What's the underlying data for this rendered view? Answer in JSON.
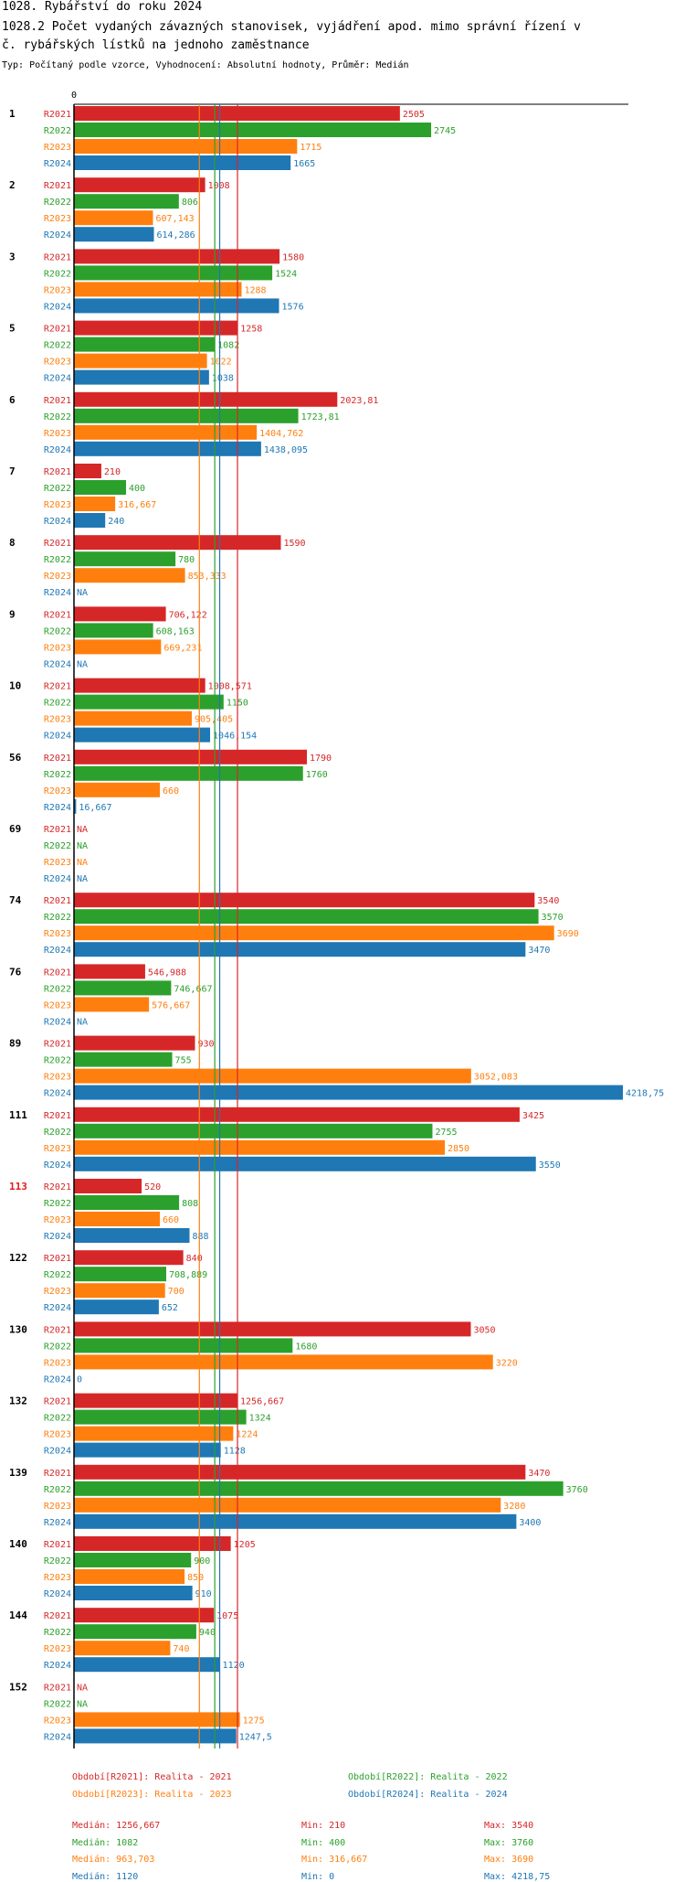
{
  "title": "1028. Rybářství do roku 2024",
  "subtitle_line1": "1028.2 Počet vydaných závazných stanovisek, vyjádření apod. mimo správní řízení v",
  "subtitle_line2": "č. rybářských lístků na jednoho zaměstnance",
  "meta": "Typ: Počítaný podle vzorce, Vyhodnocení: Absolutní hodnoty, Průměr: Medián",
  "axis_zero_label": "0",
  "colors": {
    "R2021": "#d62728",
    "R2022": "#2ca02c",
    "R2023": "#ff7f0e",
    "R2024": "#1f77b4",
    "highlight": "#e31a1c"
  },
  "chart_data": {
    "type": "bar",
    "orientation": "horizontal",
    "xlim": [
      0,
      4218.75
    ],
    "series_names": [
      "R2021",
      "R2022",
      "R2023",
      "R2024"
    ],
    "highlight_category": "113",
    "categories": [
      {
        "id": "1",
        "values": [
          2505,
          2745,
          1715,
          1665
        ],
        "labels": [
          "2505",
          "2745",
          "1715",
          "1665"
        ]
      },
      {
        "id": "2",
        "values": [
          1008,
          806,
          607.143,
          614.286
        ],
        "labels": [
          "1008",
          "806",
          "607,143",
          "614,286"
        ]
      },
      {
        "id": "3",
        "values": [
          1580,
          1524,
          1288,
          1576
        ],
        "labels": [
          "1580",
          "1524",
          "1288",
          "1576"
        ]
      },
      {
        "id": "5",
        "values": [
          1258,
          1082,
          1022,
          1038
        ],
        "labels": [
          "1258",
          "1082",
          "1022",
          "1038"
        ]
      },
      {
        "id": "6",
        "values": [
          2023.81,
          1723.81,
          1404.762,
          1438.095
        ],
        "labels": [
          "2023,81",
          "1723,81",
          "1404,762",
          "1438,095"
        ]
      },
      {
        "id": "7",
        "values": [
          210,
          400,
          316.667,
          240
        ],
        "labels": [
          "210",
          "400",
          "316,667",
          "240"
        ]
      },
      {
        "id": "8",
        "values": [
          1590,
          780,
          853.333,
          null
        ],
        "labels": [
          "1590",
          "780",
          "853,333",
          "NA"
        ]
      },
      {
        "id": "9",
        "values": [
          706.122,
          608.163,
          669.231,
          null
        ],
        "labels": [
          "706,122",
          "608,163",
          "669,231",
          "NA"
        ]
      },
      {
        "id": "10",
        "values": [
          1008.571,
          1150,
          905.405,
          1046.154
        ],
        "labels": [
          "1008,571",
          "1150",
          "905,405",
          "1046,154"
        ]
      },
      {
        "id": "56",
        "values": [
          1790,
          1760,
          660,
          16.667
        ],
        "labels": [
          "1790",
          "1760",
          "660",
          "16,667"
        ]
      },
      {
        "id": "69",
        "values": [
          null,
          null,
          null,
          null
        ],
        "labels": [
          "NA",
          "NA",
          "NA",
          "NA"
        ]
      },
      {
        "id": "74",
        "values": [
          3540,
          3570,
          3690,
          3470
        ],
        "labels": [
          "3540",
          "3570",
          "3690",
          "3470"
        ]
      },
      {
        "id": "76",
        "values": [
          546.988,
          746.667,
          576.667,
          null
        ],
        "labels": [
          "546,988",
          "746,667",
          "576,667",
          "NA"
        ]
      },
      {
        "id": "89",
        "values": [
          930,
          755,
          3052.083,
          4218.75
        ],
        "labels": [
          "930",
          "755",
          "3052,083",
          "4218,75"
        ]
      },
      {
        "id": "111",
        "values": [
          3425,
          2755,
          2850,
          3550
        ],
        "labels": [
          "3425",
          "2755",
          "2850",
          "3550"
        ]
      },
      {
        "id": "113",
        "values": [
          520,
          808,
          660,
          888
        ],
        "labels": [
          "520",
          "808",
          "660",
          "888"
        ]
      },
      {
        "id": "122",
        "values": [
          840,
          708.889,
          700,
          652
        ],
        "labels": [
          "840",
          "708,889",
          "700",
          "652"
        ]
      },
      {
        "id": "130",
        "values": [
          3050,
          1680,
          3220,
          0
        ],
        "labels": [
          "3050",
          "1680",
          "3220",
          "0"
        ]
      },
      {
        "id": "132",
        "values": [
          1256.667,
          1324,
          1224,
          1128
        ],
        "labels": [
          "1256,667",
          "1324",
          "1224",
          "1128"
        ]
      },
      {
        "id": "139",
        "values": [
          3470,
          3760,
          3280,
          3400
        ],
        "labels": [
          "3470",
          "3760",
          "3280",
          "3400"
        ]
      },
      {
        "id": "140",
        "values": [
          1205,
          900,
          850,
          910
        ],
        "labels": [
          "1205",
          "900",
          "850",
          "910"
        ]
      },
      {
        "id": "144",
        "values": [
          1075,
          940,
          740,
          1120
        ],
        "labels": [
          "1075",
          "940",
          "740",
          "1120"
        ]
      },
      {
        "id": "152",
        "values": [
          null,
          null,
          1275,
          1247.5
        ],
        "labels": [
          "NA",
          "NA",
          "1275",
          "1247,5"
        ]
      }
    ],
    "median_lines": [
      1256.667,
      1082,
      963.703,
      1120
    ],
    "legend": [
      {
        "series": "R2021",
        "text": "Období[R2021]: Realita - 2021"
      },
      {
        "series": "R2022",
        "text": "Období[R2022]: Realita - 2022"
      },
      {
        "series": "R2023",
        "text": "Období[R2023]: Realita - 2023"
      },
      {
        "series": "R2024",
        "text": "Období[R2024]: Realita - 2024"
      }
    ],
    "stats": [
      {
        "series": "R2021",
        "median": "Medián: 1256,667",
        "min": "Min: 210",
        "max": "Max: 3540"
      },
      {
        "series": "R2022",
        "median": "Medián: 1082",
        "min": "Min: 400",
        "max": "Max: 3760"
      },
      {
        "series": "R2023",
        "median": "Medián: 963,703",
        "min": "Min: 316,667",
        "max": "Max: 3690"
      },
      {
        "series": "R2024",
        "median": "Medián: 1120",
        "min": "Min: 0",
        "max": "Max: 4218,75"
      }
    ]
  }
}
